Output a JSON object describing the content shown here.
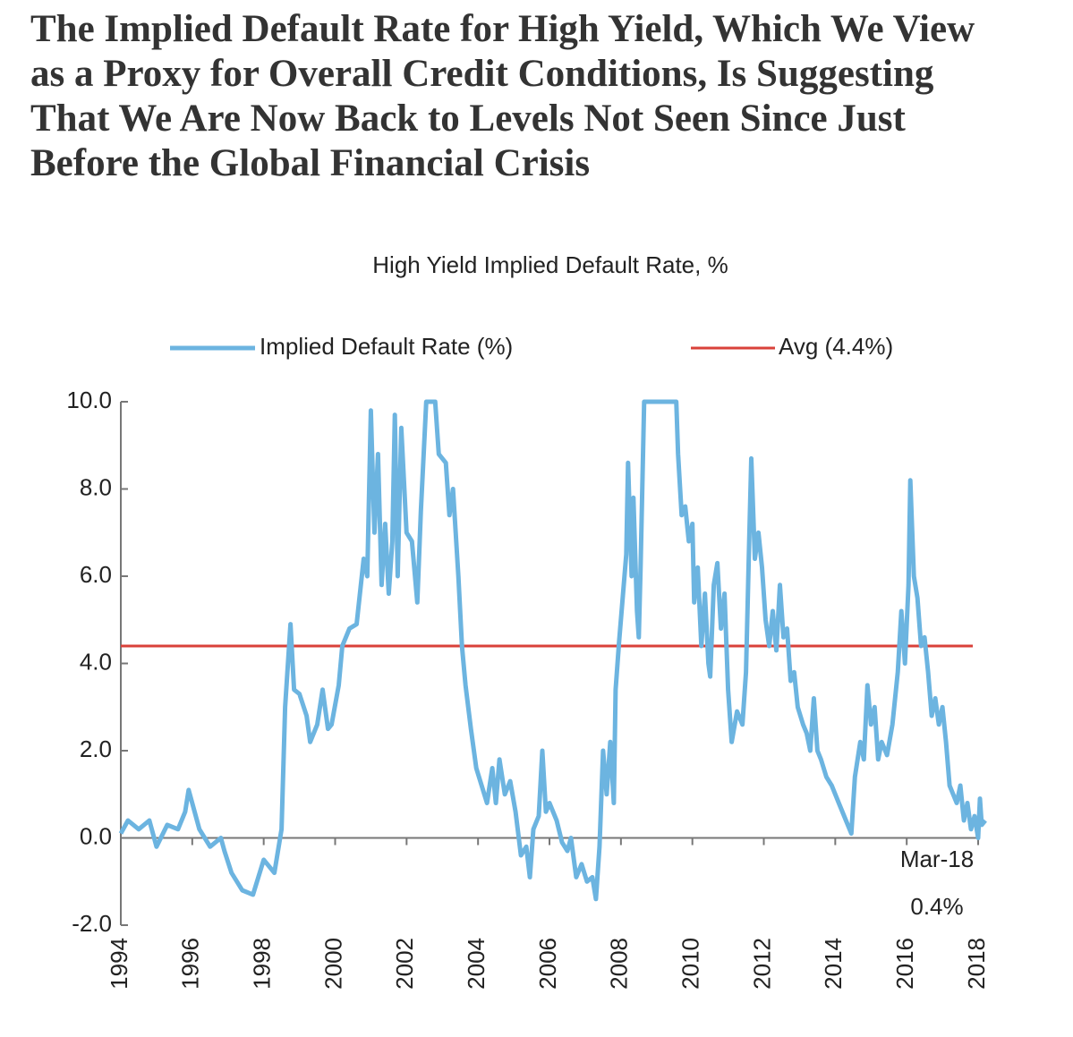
{
  "chart_data": {
    "type": "line",
    "title": "The Implied Default Rate for High Yield, Which We View as a Proxy for Overall Credit Conditions, Is Suggesting That We Are Now Back to Levels Not Seen Since Just Before the Global Financial Crisis",
    "subtitle": "High Yield Implied Default Rate, %",
    "x": [
      1994.0,
      1994.2,
      1994.5,
      1994.8,
      1995.0,
      1995.3,
      1995.6,
      1995.8,
      1995.9,
      1996.2,
      1996.5,
      1996.8,
      1996.9,
      1997.1,
      1997.4,
      1997.7,
      1998.0,
      1998.3,
      1998.5,
      1998.6,
      1998.75,
      1998.85,
      1999.0,
      1999.2,
      1999.3,
      1999.5,
      1999.65,
      1999.8,
      1999.9,
      2000.1,
      2000.2,
      2000.4,
      2000.6,
      2000.8,
      2000.9,
      2001.0,
      2001.1,
      2001.2,
      2001.3,
      2001.4,
      2001.5,
      2001.6,
      2001.67,
      2001.75,
      2001.85,
      2002.0,
      2002.15,
      2002.3,
      2002.4,
      2002.55,
      2002.8,
      2002.9,
      2003.1,
      2003.2,
      2003.3,
      2003.45,
      2003.55,
      2003.65,
      2003.8,
      2003.95,
      2004.1,
      2004.25,
      2004.4,
      2004.5,
      2004.6,
      2004.75,
      2004.9,
      2005.05,
      2005.2,
      2005.35,
      2005.45,
      2005.55,
      2005.7,
      2005.8,
      2005.9,
      2006.0,
      2006.2,
      2006.35,
      2006.5,
      2006.6,
      2006.75,
      2006.9,
      2007.05,
      2007.2,
      2007.3,
      2007.4,
      2007.5,
      2007.6,
      2007.7,
      2007.8,
      2007.85,
      2007.95,
      2008.05,
      2008.15,
      2008.2,
      2008.3,
      2008.35,
      2008.45,
      2008.5,
      2008.55,
      2008.65,
      2009.55,
      2009.6,
      2009.7,
      2009.8,
      2009.9,
      2010.0,
      2010.05,
      2010.15,
      2010.25,
      2010.35,
      2010.45,
      2010.5,
      2010.6,
      2010.7,
      2010.8,
      2010.9,
      2011.0,
      2011.1,
      2011.25,
      2011.4,
      2011.5,
      2011.58,
      2011.65,
      2011.75,
      2011.85,
      2011.95,
      2012.05,
      2012.15,
      2012.25,
      2012.35,
      2012.45,
      2012.55,
      2012.65,
      2012.75,
      2012.85,
      2012.95,
      2013.1,
      2013.2,
      2013.3,
      2013.4,
      2013.5,
      2013.6,
      2013.75,
      2013.9,
      2014.1,
      2014.3,
      2014.45,
      2014.55,
      2014.7,
      2014.8,
      2014.9,
      2015.0,
      2015.1,
      2015.2,
      2015.3,
      2015.45,
      2015.6,
      2015.75,
      2015.85,
      2015.95,
      2016.05,
      2016.1,
      2016.2,
      2016.3,
      2016.4,
      2016.5,
      2016.6,
      2016.7,
      2016.8,
      2016.9,
      2017.0,
      2017.1,
      2017.2,
      2017.3,
      2017.4,
      2017.5,
      2017.6,
      2017.7,
      2017.8,
      2017.9,
      2018.0,
      2018.05,
      2018.1,
      2018.2
    ],
    "series": [
      {
        "name": "Implied Default Rate (%)",
        "color": "#6cb4e0",
        "values": [
          0.1,
          0.4,
          0.2,
          0.4,
          -0.2,
          0.3,
          0.2,
          0.6,
          1.1,
          0.2,
          -0.2,
          0.0,
          -0.3,
          -0.8,
          -1.2,
          -1.3,
          -0.5,
          -0.8,
          0.2,
          3.0,
          4.9,
          3.4,
          3.3,
          2.8,
          2.2,
          2.6,
          3.4,
          2.5,
          2.6,
          3.5,
          4.4,
          4.8,
          4.9,
          6.4,
          6.0,
          9.8,
          7.0,
          8.8,
          5.8,
          7.2,
          5.6,
          6.8,
          9.7,
          6.0,
          9.4,
          7.0,
          6.8,
          5.4,
          7.5,
          10.0,
          10.0,
          8.8,
          8.6,
          7.4,
          8.0,
          6.0,
          4.4,
          3.5,
          2.5,
          1.6,
          1.2,
          0.8,
          1.6,
          0.8,
          1.8,
          1.0,
          1.3,
          0.6,
          -0.4,
          -0.2,
          -0.9,
          0.2,
          0.5,
          2.0,
          0.6,
          0.8,
          0.4,
          -0.1,
          -0.3,
          0.0,
          -0.9,
          -0.6,
          -1.0,
          -0.9,
          -1.4,
          -0.2,
          2.0,
          1.0,
          2.2,
          0.8,
          3.4,
          4.5,
          5.5,
          6.5,
          8.6,
          6.0,
          7.8,
          5.2,
          4.6,
          6.2,
          10.0,
          10.0,
          8.8,
          7.4,
          7.6,
          6.8,
          7.2,
          5.4,
          6.2,
          4.4,
          5.6,
          4.0,
          3.7,
          5.8,
          6.3,
          4.8,
          5.6,
          3.4,
          2.2,
          2.9,
          2.6,
          3.8,
          6.5,
          8.7,
          6.4,
          7.0,
          6.2,
          5.0,
          4.4,
          5.2,
          4.3,
          5.8,
          4.6,
          4.8,
          3.6,
          3.8,
          3.0,
          2.6,
          2.4,
          2.0,
          3.2,
          2.0,
          1.8,
          1.4,
          1.2,
          0.8,
          0.4,
          0.1,
          1.4,
          2.2,
          1.8,
          3.5,
          2.6,
          3.0,
          1.8,
          2.2,
          1.9,
          2.6,
          3.8,
          5.2,
          4.0,
          5.8,
          8.2,
          6.0,
          5.5,
          4.4,
          4.6,
          3.8,
          2.8,
          3.2,
          2.6,
          3.0,
          2.2,
          1.2,
          1.0,
          0.8,
          1.2,
          0.4,
          0.8,
          0.2,
          0.5,
          0.0,
          0.9,
          0.3,
          0.4
        ]
      }
    ],
    "reference_line": {
      "name": "Avg (4.4%)",
      "value": 4.4,
      "color": "#d9413a"
    },
    "annotations": [
      "Mar-18",
      "0.4%"
    ],
    "xlim": [
      1994,
      2018.25
    ],
    "xticks": [
      1994,
      1996,
      1998,
      2000,
      2002,
      2004,
      2006,
      2008,
      2010,
      2012,
      2014,
      2016,
      2018
    ],
    "ylim": [
      -2,
      10
    ],
    "yticks": [
      {
        "value": -2,
        "label": "-2.0"
      },
      {
        "value": 0,
        "label": "0.0"
      },
      {
        "value": 2,
        "label": "2.0"
      },
      {
        "value": 4,
        "label": "4.0"
      },
      {
        "value": 6,
        "label": "6.0"
      },
      {
        "value": 8,
        "label": "8.0"
      },
      {
        "value": 10,
        "label": "10.0"
      }
    ]
  }
}
